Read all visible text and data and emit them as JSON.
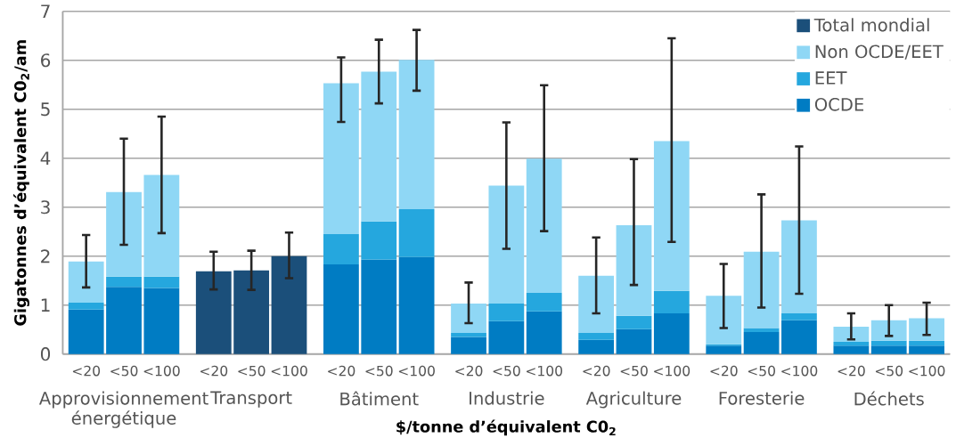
{
  "chart_data": {
    "type": "bar",
    "stacked": true,
    "xlabel": "$/tonne d’équivalent C0$_{2}$",
    "ylabel": "Gigatonnes d’équivalent C0$_{2}$/am",
    "categories": [
      "<20",
      "<50",
      "<100",
      "<20",
      "<50",
      "<100",
      "<20",
      "<50",
      "<100",
      "<20",
      "<50",
      "<100",
      "<20",
      "<50",
      "<100",
      "<20",
      "<50",
      "<100",
      "<20",
      "<50",
      "<100"
    ],
    "annotations": [
      "Approvisionnement énergétique",
      "Transport",
      "Bâtiment",
      "Industrie",
      "Agriculture",
      "Foresterie",
      "Déchets"
    ],
    "series": [
      {
        "name": "OCDE",
        "color": "#007cc3",
        "values": [
          0.91,
          1.37,
          1.35,
          null,
          null,
          null,
          1.83,
          1.93,
          1.98,
          0.35,
          0.67,
          0.87,
          0.29,
          0.51,
          0.83,
          0.17,
          0.45,
          0.69,
          0.17,
          0.17,
          0.17
        ]
      },
      {
        "name": "EET",
        "color": "#25a7de",
        "values": [
          0.14,
          0.21,
          0.23,
          null,
          null,
          null,
          0.62,
          0.78,
          0.98,
          0.08,
          0.36,
          0.38,
          0.14,
          0.27,
          0.46,
          0.03,
          0.08,
          0.14,
          0.08,
          0.1,
          0.1
        ]
      },
      {
        "name": "Non OCDE/EET",
        "color": "#8fd7f5",
        "values": [
          0.84,
          1.73,
          2.08,
          null,
          null,
          null,
          3.08,
          3.06,
          3.05,
          0.6,
          2.41,
          2.74,
          1.17,
          1.85,
          3.06,
          0.99,
          1.56,
          1.9,
          0.31,
          0.42,
          0.46
        ],
        "errors": [
          [
            1.36,
            2.43
          ],
          [
            2.23,
            4.4
          ],
          [
            2.47,
            4.85
          ],
          null,
          null,
          null,
          [
            4.74,
            6.06
          ],
          [
            5.12,
            6.42
          ],
          [
            5.38,
            6.62
          ],
          [
            0.63,
            1.46
          ],
          [
            2.15,
            4.73
          ],
          [
            2.51,
            5.49
          ],
          [
            0.83,
            2.38
          ],
          [
            1.41,
            3.98
          ],
          [
            2.29,
            6.45
          ],
          [
            0.53,
            1.84
          ],
          [
            0.95,
            3.26
          ],
          [
            1.23,
            4.24
          ],
          [
            0.3,
            0.83
          ],
          [
            0.37,
            1.0
          ],
          [
            0.39,
            1.05
          ]
        ]
      },
      {
        "name": "Total mondial",
        "color": "#1b4f7a",
        "values": [
          null,
          null,
          null,
          1.69,
          1.71,
          2.0,
          null,
          null,
          null,
          null,
          null,
          null,
          null,
          null,
          null,
          null,
          null,
          null,
          null,
          null,
          null
        ],
        "errors": [
          null,
          null,
          null,
          [
            1.32,
            2.09
          ],
          [
            1.31,
            2.11
          ],
          [
            1.55,
            2.48
          ],
          null,
          null,
          null,
          null,
          null,
          null,
          null,
          null,
          null,
          null,
          null,
          null,
          null,
          null,
          null
        ]
      }
    ],
    "ylim": [
      0,
      7
    ],
    "yticks": [
      0,
      1,
      2,
      3,
      4,
      5,
      6,
      7
    ],
    "grid": "y",
    "legend": "top right"
  }
}
